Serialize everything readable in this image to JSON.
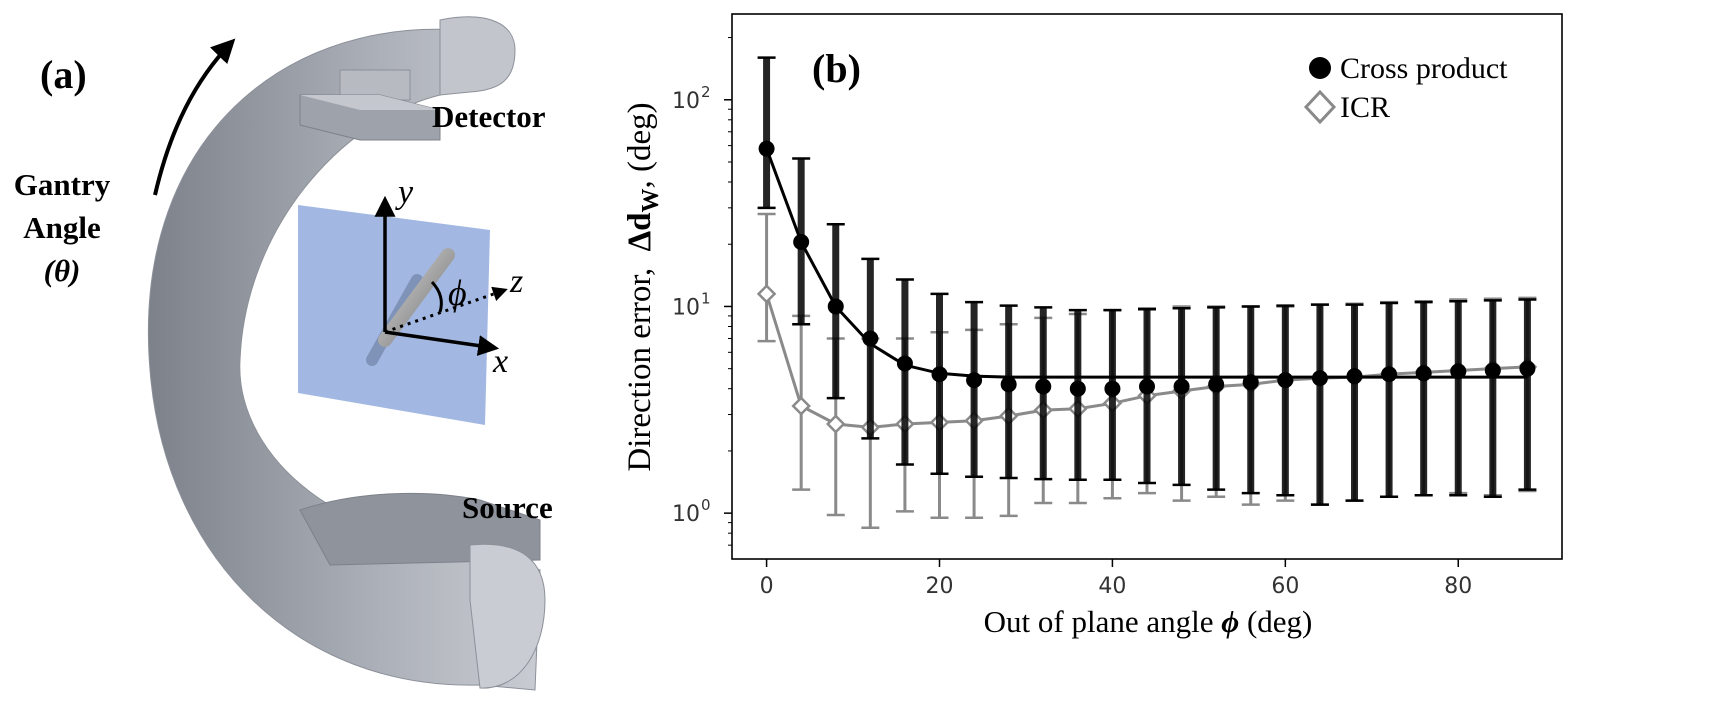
{
  "panel_a": {
    "label": "(a)",
    "gantry_line1": "Gantry",
    "gantry_line2": "Angle",
    "gantry_line3": "(θ)",
    "detector_label": "Detector",
    "source_label": "Source",
    "axis_y": "y",
    "axis_z": "z",
    "axis_x": "x",
    "phi_symbol": "ϕ",
    "colors": {
      "gantry": "#a9adb5",
      "plane": "#9db4e0",
      "arrow": "#000000"
    }
  },
  "chart_data": {
    "type": "line",
    "panel_label": "(b)",
    "xlabel": "Out of plane angle",
    "xlabel_symbol": "ϕ",
    "xlabel_unit": "(deg)",
    "ylabel_prefix": "Direction error,",
    "ylabel_symbol": "Δd",
    "ylabel_sub": "W",
    "ylabel_unit": ", (deg)",
    "yscale": "log",
    "xlim": [
      -4,
      92
    ],
    "ylim": [
      0.6,
      260
    ],
    "x_ticks": [
      0,
      20,
      40,
      60,
      80
    ],
    "x_tick_labels": [
      "0",
      "20",
      "40",
      "60",
      "80"
    ],
    "y_ticks": [
      1,
      10,
      100
    ],
    "y_tick_labels": [
      {
        "base": "10",
        "exp": "0"
      },
      {
        "base": "10",
        "exp": "1"
      },
      {
        "base": "10",
        "exp": "2"
      }
    ],
    "x": [
      0,
      4,
      8,
      12,
      16,
      20,
      24,
      28,
      32,
      36,
      40,
      44,
      48,
      52,
      56,
      60,
      64,
      68,
      72,
      76,
      80,
      84,
      88
    ],
    "series": [
      {
        "name": "ICR",
        "marker": "diamond-open",
        "color": "#8a8a8a",
        "values": [
          11.5,
          3.3,
          2.7,
          2.6,
          2.7,
          2.75,
          2.8,
          2.95,
          3.15,
          3.2,
          3.4,
          3.7,
          3.9,
          4.1,
          4.2,
          4.4,
          4.5,
          4.55,
          4.7,
          4.8,
          4.9,
          5.0,
          5.1
        ],
        "fit": [
          11.5,
          3.3,
          2.7,
          2.6,
          2.7,
          2.75,
          2.8,
          2.95,
          3.15,
          3.2,
          3.4,
          3.7,
          3.9,
          4.1,
          4.2,
          4.4,
          4.5,
          4.55,
          4.7,
          4.8,
          4.9,
          5.0,
          5.1
        ],
        "err_upper": [
          28,
          9,
          7,
          7,
          7,
          7.5,
          7.7,
          8.2,
          8.8,
          9.2,
          9.6,
          9.8,
          10,
          10,
          10,
          10,
          10.2,
          10.3,
          10.5,
          10.6,
          10.8,
          10.9,
          11
        ],
        "err_lower": [
          6.8,
          1.3,
          0.98,
          0.85,
          1.02,
          0.95,
          0.95,
          0.97,
          1.12,
          1.12,
          1.18,
          1.25,
          1.15,
          1.2,
          1.1,
          1.15,
          1.1,
          1.15,
          1.2,
          1.22,
          1.25,
          1.22,
          1.28
        ]
      },
      {
        "name": "Cross product",
        "marker": "circle-filled",
        "color": "#000000",
        "values": [
          58,
          20.5,
          10,
          7,
          5.3,
          4.7,
          4.4,
          4.2,
          4.1,
          4.0,
          4.0,
          4.1,
          4.1,
          4.2,
          4.3,
          4.4,
          4.5,
          4.6,
          4.7,
          4.75,
          4.85,
          4.9,
          5.0
        ],
        "fit": [
          58,
          20.5,
          10,
          6.6,
          5.2,
          4.75,
          4.6,
          4.55,
          4.55,
          4.55,
          4.55,
          4.55,
          4.55,
          4.55,
          4.55,
          4.55,
          4.55,
          4.55,
          4.55,
          4.55,
          4.55,
          4.55,
          4.55
        ],
        "err_upper": [
          160,
          52,
          25,
          17,
          13.5,
          11.5,
          10.5,
          10.1,
          9.9,
          9.6,
          9.6,
          9.7,
          9.8,
          9.9,
          10.0,
          10.1,
          10.2,
          10.2,
          10.4,
          10.5,
          10.6,
          10.7,
          10.8
        ],
        "err_lower": [
          30,
          8.2,
          3.6,
          2.3,
          1.72,
          1.55,
          1.5,
          1.48,
          1.46,
          1.45,
          1.45,
          1.4,
          1.37,
          1.3,
          1.25,
          1.22,
          1.1,
          1.15,
          1.2,
          1.22,
          1.22,
          1.2,
          1.3
        ]
      }
    ],
    "legend": {
      "placement": "top-right",
      "entries": [
        "Cross product",
        "ICR"
      ]
    }
  }
}
